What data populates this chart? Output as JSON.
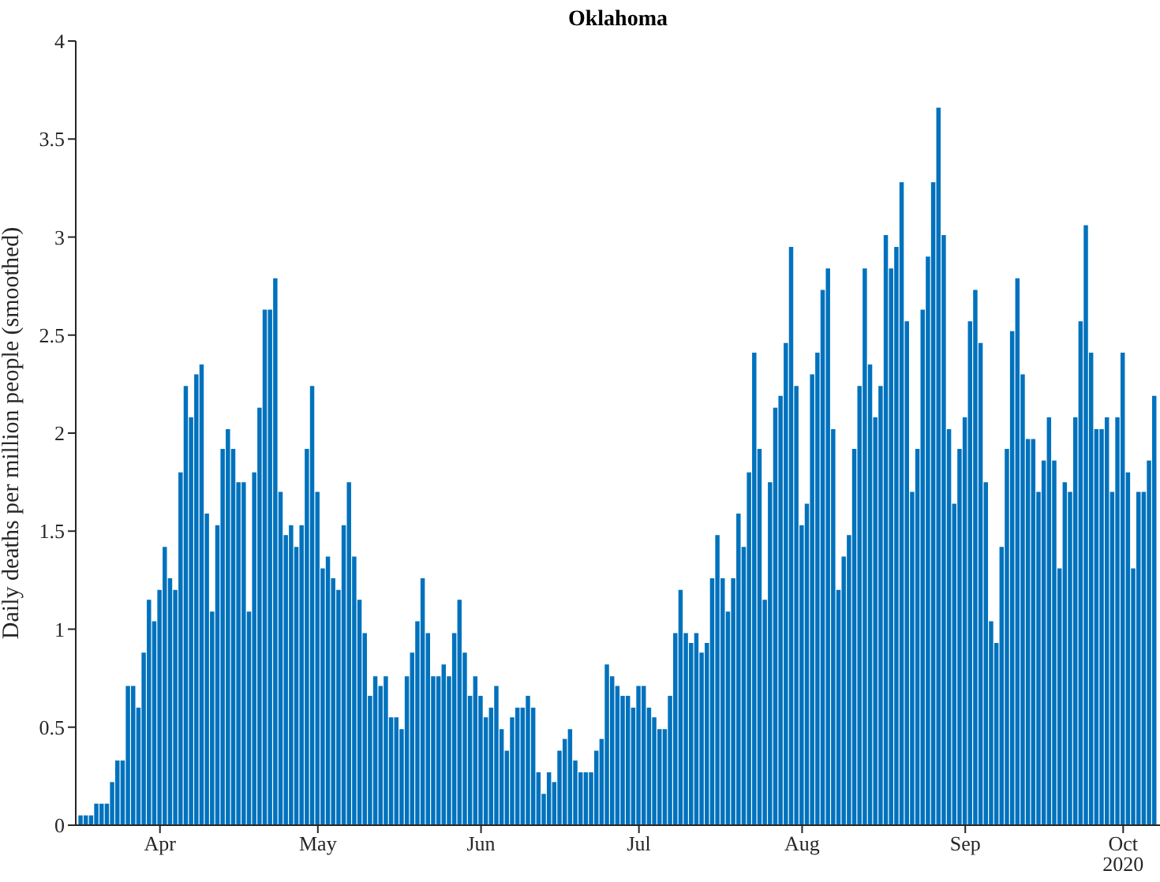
{
  "chart_data": {
    "type": "bar",
    "title": "Oklahoma",
    "ylabel": "Daily deaths per million people (smoothed)",
    "x": [
      "2020-03-17",
      "2020-03-18",
      "2020-03-19",
      "2020-03-20",
      "2020-03-21",
      "2020-03-22",
      "2020-03-23",
      "2020-03-24",
      "2020-03-25",
      "2020-03-26",
      "2020-03-27",
      "2020-03-28",
      "2020-03-29",
      "2020-03-30",
      "2020-03-31",
      "2020-04-01",
      "2020-04-02",
      "2020-04-03",
      "2020-04-04",
      "2020-04-05",
      "2020-04-06",
      "2020-04-07",
      "2020-04-08",
      "2020-04-09",
      "2020-04-10",
      "2020-04-11",
      "2020-04-12",
      "2020-04-13",
      "2020-04-14",
      "2020-04-15",
      "2020-04-16",
      "2020-04-17",
      "2020-04-18",
      "2020-04-19",
      "2020-04-20",
      "2020-04-21",
      "2020-04-22",
      "2020-04-23",
      "2020-04-24",
      "2020-04-25",
      "2020-04-26",
      "2020-04-27",
      "2020-04-28",
      "2020-04-29",
      "2020-04-30",
      "2020-05-01",
      "2020-05-02",
      "2020-05-03",
      "2020-05-04",
      "2020-05-05",
      "2020-05-06",
      "2020-05-07",
      "2020-05-08",
      "2020-05-09",
      "2020-05-10",
      "2020-05-11",
      "2020-05-12",
      "2020-05-13",
      "2020-05-14",
      "2020-05-15",
      "2020-05-16",
      "2020-05-17",
      "2020-05-18",
      "2020-05-19",
      "2020-05-20",
      "2020-05-21",
      "2020-05-22",
      "2020-05-23",
      "2020-05-24",
      "2020-05-25",
      "2020-05-26",
      "2020-05-27",
      "2020-05-28",
      "2020-05-29",
      "2020-05-30",
      "2020-05-31",
      "2020-06-01",
      "2020-06-02",
      "2020-06-03",
      "2020-06-04",
      "2020-06-05",
      "2020-06-06",
      "2020-06-07",
      "2020-06-08",
      "2020-06-09",
      "2020-06-10",
      "2020-06-11",
      "2020-06-12",
      "2020-06-13",
      "2020-06-14",
      "2020-06-15",
      "2020-06-16",
      "2020-06-17",
      "2020-06-18",
      "2020-06-19",
      "2020-06-20",
      "2020-06-21",
      "2020-06-22",
      "2020-06-23",
      "2020-06-24",
      "2020-06-25",
      "2020-06-26",
      "2020-06-27",
      "2020-06-28",
      "2020-06-29",
      "2020-06-30",
      "2020-07-01",
      "2020-07-02",
      "2020-07-03",
      "2020-07-04",
      "2020-07-05",
      "2020-07-06",
      "2020-07-07",
      "2020-07-08",
      "2020-07-09",
      "2020-07-10",
      "2020-07-11",
      "2020-07-12",
      "2020-07-13",
      "2020-07-14",
      "2020-07-15",
      "2020-07-16",
      "2020-07-17",
      "2020-07-18",
      "2020-07-19",
      "2020-07-20",
      "2020-07-21",
      "2020-07-22",
      "2020-07-23",
      "2020-07-24",
      "2020-07-25",
      "2020-07-26",
      "2020-07-27",
      "2020-07-28",
      "2020-07-29",
      "2020-07-30",
      "2020-07-31",
      "2020-08-01",
      "2020-08-02",
      "2020-08-03",
      "2020-08-04",
      "2020-08-05",
      "2020-08-06",
      "2020-08-07",
      "2020-08-08",
      "2020-08-09",
      "2020-08-10",
      "2020-08-11",
      "2020-08-12",
      "2020-08-13",
      "2020-08-14",
      "2020-08-15",
      "2020-08-16",
      "2020-08-17",
      "2020-08-18",
      "2020-08-19",
      "2020-08-20",
      "2020-08-21",
      "2020-08-22",
      "2020-08-23",
      "2020-08-24",
      "2020-08-25",
      "2020-08-26",
      "2020-08-27",
      "2020-08-28",
      "2020-08-29",
      "2020-08-30",
      "2020-08-31",
      "2020-09-01",
      "2020-09-02",
      "2020-09-03",
      "2020-09-04",
      "2020-09-05",
      "2020-09-06",
      "2020-09-07",
      "2020-09-08",
      "2020-09-09",
      "2020-09-10",
      "2020-09-11",
      "2020-09-12",
      "2020-09-13",
      "2020-09-14",
      "2020-09-15",
      "2020-09-16",
      "2020-09-17",
      "2020-09-18",
      "2020-09-19",
      "2020-09-20",
      "2020-09-21",
      "2020-09-22",
      "2020-09-23",
      "2020-09-24",
      "2020-09-25",
      "2020-09-26",
      "2020-09-27",
      "2020-09-28",
      "2020-09-29",
      "2020-09-30",
      "2020-10-01",
      "2020-10-02",
      "2020-10-03",
      "2020-10-04",
      "2020-10-05",
      "2020-10-06",
      "2020-10-07"
    ],
    "values": [
      0.05,
      0.05,
      0.05,
      0.11,
      0.11,
      0.11,
      0.22,
      0.33,
      0.33,
      0.71,
      0.71,
      0.6,
      0.88,
      1.15,
      1.04,
      1.2,
      1.42,
      1.26,
      1.2,
      1.8,
      2.24,
      2.08,
      2.3,
      2.35,
      1.59,
      1.09,
      1.53,
      1.92,
      2.02,
      1.92,
      1.75,
      1.75,
      1.09,
      1.8,
      2.13,
      2.63,
      2.63,
      2.79,
      1.7,
      1.48,
      1.53,
      1.42,
      1.53,
      1.92,
      2.24,
      1.7,
      1.31,
      1.37,
      1.26,
      1.2,
      1.53,
      1.75,
      1.37,
      1.15,
      0.98,
      0.66,
      0.76,
      0.71,
      0.76,
      0.55,
      0.55,
      0.49,
      0.76,
      0.88,
      1.04,
      1.26,
      0.98,
      0.76,
      0.76,
      0.82,
      0.76,
      0.98,
      1.15,
      0.88,
      0.66,
      0.76,
      0.66,
      0.55,
      0.6,
      0.71,
      0.49,
      0.38,
      0.55,
      0.6,
      0.6,
      0.66,
      0.6,
      0.27,
      0.16,
      0.27,
      0.22,
      0.38,
      0.44,
      0.49,
      0.33,
      0.27,
      0.27,
      0.27,
      0.38,
      0.44,
      0.82,
      0.76,
      0.71,
      0.66,
      0.66,
      0.6,
      0.71,
      0.71,
      0.6,
      0.55,
      0.49,
      0.49,
      0.66,
      0.98,
      1.2,
      0.98,
      0.93,
      0.98,
      0.88,
      0.93,
      1.26,
      1.48,
      1.26,
      1.09,
      1.26,
      1.59,
      1.42,
      1.8,
      2.41,
      1.92,
      1.15,
      1.75,
      2.13,
      2.19,
      2.46,
      2.95,
      2.24,
      1.53,
      1.64,
      2.3,
      2.41,
      2.73,
      2.84,
      2.02,
      1.2,
      1.37,
      1.48,
      1.92,
      2.24,
      2.84,
      2.35,
      2.08,
      2.24,
      3.01,
      2.84,
      2.95,
      3.28,
      2.57,
      1.7,
      1.92,
      2.63,
      2.9,
      3.28,
      3.66,
      3.01,
      2.02,
      1.64,
      1.92,
      2.08,
      2.57,
      2.73,
      2.46,
      1.75,
      1.04,
      0.93,
      1.42,
      1.92,
      2.52,
      2.79,
      2.3,
      1.97,
      1.97,
      1.7,
      1.86,
      2.08,
      1.86,
      1.31,
      1.75,
      1.7,
      2.08,
      2.57,
      3.06,
      2.41,
      2.02,
      2.02,
      2.08,
      1.7,
      2.08,
      2.41,
      1.8,
      1.31,
      1.7,
      1.7,
      1.86,
      2.19
    ],
    "color": "#0072bd",
    "xlim": [
      "2020-03-16",
      "2020-10-08"
    ],
    "xticks": [
      {
        "value": "2020-04-01",
        "label": "Apr"
      },
      {
        "value": "2020-05-01",
        "label": "May"
      },
      {
        "value": "2020-06-01",
        "label": "Jun"
      },
      {
        "value": "2020-07-01",
        "label": "Jul"
      },
      {
        "value": "2020-08-01",
        "label": "Aug"
      },
      {
        "value": "2020-09-01",
        "label": "Sep"
      },
      {
        "value": "2020-10-01",
        "label": "Oct"
      }
    ],
    "ylim": [
      0,
      4
    ],
    "yticks": [
      0,
      0.5,
      1,
      1.5,
      2,
      2.5,
      3,
      3.5,
      4
    ],
    "annotations": [
      "2020"
    ],
    "grid": false,
    "legend": false
  }
}
